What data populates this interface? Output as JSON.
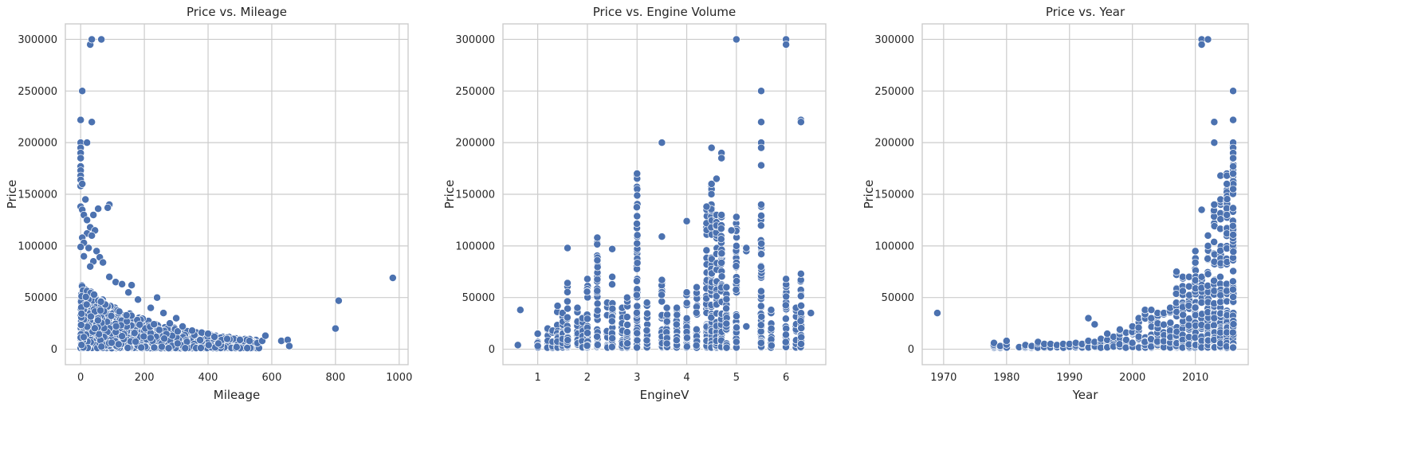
{
  "colors": {
    "points": "#4c72b0",
    "grid": "#cccccc",
    "frame": "#cccccc",
    "text": "#262626"
  },
  "chart_data": [
    {
      "type": "scatter",
      "title": "Price vs. Mileage",
      "xlabel": "Mileage",
      "ylabel": "Price",
      "xlim": [
        -48,
        1028
      ],
      "ylim": [
        -15000,
        315000
      ],
      "xticks": [
        0,
        200,
        400,
        600,
        800,
        1000
      ],
      "yticks": [
        0,
        50000,
        100000,
        150000,
        200000,
        250000,
        300000
      ],
      "grid": true,
      "cluster": {
        "x": [
          0,
          560
        ],
        "y": [
          1000,
          60000
        ],
        "count": 1400
      },
      "points": [
        [
          30,
          295000
        ],
        [
          35,
          300000
        ],
        [
          65,
          300000
        ],
        [
          5,
          250000
        ],
        [
          0,
          222000
        ],
        [
          35,
          220000
        ],
        [
          0,
          200000
        ],
        [
          20,
          200000
        ],
        [
          0,
          195000
        ],
        [
          0,
          190000
        ],
        [
          0,
          185000
        ],
        [
          0,
          177000
        ],
        [
          0,
          173000
        ],
        [
          0,
          168000
        ],
        [
          0,
          164000
        ],
        [
          0,
          158000
        ],
        [
          5,
          160000
        ],
        [
          15,
          145000
        ],
        [
          90,
          140000
        ],
        [
          85,
          137000
        ],
        [
          55,
          136000
        ],
        [
          40,
          130000
        ],
        [
          0,
          138000
        ],
        [
          5,
          135000
        ],
        [
          10,
          130000
        ],
        [
          20,
          125000
        ],
        [
          30,
          118000
        ],
        [
          45,
          115000
        ],
        [
          20,
          112000
        ],
        [
          35,
          110000
        ],
        [
          5,
          108000
        ],
        [
          10,
          103000
        ],
        [
          0,
          99000
        ],
        [
          25,
          98000
        ],
        [
          50,
          95000
        ],
        [
          10,
          90000
        ],
        [
          60,
          89000
        ],
        [
          40,
          85000
        ],
        [
          70,
          84000
        ],
        [
          30,
          80000
        ],
        [
          90,
          70000
        ],
        [
          110,
          65000
        ],
        [
          130,
          63000
        ],
        [
          160,
          62000
        ],
        [
          150,
          55000
        ],
        [
          180,
          48000
        ],
        [
          240,
          50000
        ],
        [
          220,
          40000
        ],
        [
          260,
          35000
        ],
        [
          300,
          30000
        ],
        [
          280,
          25000
        ],
        [
          320,
          22000
        ],
        [
          350,
          18000
        ],
        [
          380,
          16000
        ],
        [
          400,
          15000
        ],
        [
          420,
          12000
        ],
        [
          460,
          10000
        ],
        [
          500,
          9000
        ],
        [
          530,
          8000
        ],
        [
          555,
          6000
        ],
        [
          570,
          8000
        ],
        [
          580,
          13000
        ],
        [
          630,
          8000
        ],
        [
          650,
          9000
        ],
        [
          655,
          3000
        ],
        [
          800,
          20000
        ],
        [
          810,
          47000
        ],
        [
          980,
          69000
        ]
      ]
    },
    {
      "type": "scatter",
      "title": "Price vs. Engine Volume",
      "xlabel": "EngineV",
      "ylabel": "Price",
      "xlim": [
        0.3,
        6.8
      ],
      "ylim": [
        -15000,
        315000
      ],
      "xticks": [
        1,
        2,
        3,
        4,
        5,
        6
      ],
      "yticks": [
        0,
        50000,
        100000,
        150000,
        200000,
        250000,
        300000
      ],
      "grid": true,
      "columns": [
        [
          1.0,
          15000
        ],
        [
          1.2,
          20000
        ],
        [
          1.3,
          18000
        ],
        [
          1.4,
          42000
        ],
        [
          1.5,
          35000
        ],
        [
          1.6,
          64000
        ],
        [
          1.8,
          40000
        ],
        [
          1.9,
          30000
        ],
        [
          2.0,
          68000
        ],
        [
          2.2,
          108000
        ],
        [
          2.4,
          45000
        ],
        [
          2.5,
          70000
        ],
        [
          2.7,
          40000
        ],
        [
          2.8,
          50000
        ],
        [
          3.0,
          170000
        ],
        [
          3.2,
          45000
        ],
        [
          3.5,
          67000
        ],
        [
          3.6,
          40000
        ],
        [
          3.8,
          40000
        ],
        [
          4.0,
          55000
        ],
        [
          4.2,
          60000
        ],
        [
          4.4,
          135000
        ],
        [
          4.5,
          160000
        ],
        [
          4.6,
          130000
        ],
        [
          4.7,
          130000
        ],
        [
          4.8,
          60000
        ],
        [
          5.0,
          128000
        ],
        [
          5.5,
          138000
        ],
        [
          5.7,
          35000
        ],
        [
          6.0,
          68000
        ],
        [
          6.2,
          40000
        ],
        [
          6.3,
          73000
        ]
      ],
      "points": [
        [
          0.6,
          4000
        ],
        [
          0.65,
          38000
        ],
        [
          1.6,
          98000
        ],
        [
          2.5,
          97000
        ],
        [
          3.5,
          109000
        ],
        [
          3.5,
          200000
        ],
        [
          4.0,
          124000
        ],
        [
          4.5,
          195000
        ],
        [
          4.6,
          165000
        ],
        [
          4.7,
          190000
        ],
        [
          4.7,
          185000
        ],
        [
          4.9,
          115000
        ],
        [
          5.0,
          300000
        ],
        [
          5.0,
          100000
        ],
        [
          5.2,
          22000
        ],
        [
          5.2,
          95000
        ],
        [
          5.5,
          250000
        ],
        [
          5.5,
          220000
        ],
        [
          5.5,
          200000
        ],
        [
          5.5,
          195000
        ],
        [
          5.5,
          178000
        ],
        [
          6.0,
          300000
        ],
        [
          6.0,
          295000
        ],
        [
          6.3,
          222000
        ],
        [
          6.3,
          220000
        ],
        [
          6.5,
          35000
        ],
        [
          5.7,
          38000
        ],
        [
          5.2,
          98000
        ],
        [
          4.4,
          138000
        ],
        [
          5.5,
          140000
        ]
      ]
    },
    {
      "type": "scatter",
      "title": "Price vs. Year",
      "xlabel": "Year",
      "ylabel": "Price",
      "xlim": [
        1966.6,
        2018.4
      ],
      "ylim": [
        -15000,
        315000
      ],
      "xticks": [
        1970,
        1980,
        1990,
        2000,
        2010
      ],
      "yticks": [
        0,
        50000,
        100000,
        150000,
        200000,
        250000,
        300000
      ],
      "grid": true,
      "columns": [
        [
          1978,
          6000
        ],
        [
          1979,
          3000
        ],
        [
          1980,
          8000
        ],
        [
          1982,
          2000
        ],
        [
          1983,
          4000
        ],
        [
          1984,
          3000
        ],
        [
          1985,
          7000
        ],
        [
          1986,
          5000
        ],
        [
          1987,
          5000
        ],
        [
          1988,
          4000
        ],
        [
          1989,
          5000
        ],
        [
          1990,
          5000
        ],
        [
          1991,
          6000
        ],
        [
          1992,
          5000
        ],
        [
          1993,
          8000
        ],
        [
          1994,
          7000
        ],
        [
          1995,
          10000
        ],
        [
          1996,
          9000
        ],
        [
          1997,
          12000
        ],
        [
          1998,
          18000
        ],
        [
          1999,
          16000
        ],
        [
          2000,
          22000
        ],
        [
          2001,
          30000
        ],
        [
          2002,
          38000
        ],
        [
          2003,
          30000
        ],
        [
          2004,
          35000
        ],
        [
          2005,
          35000
        ],
        [
          2006,
          40000
        ],
        [
          2007,
          72000
        ],
        [
          2008,
          70000
        ],
        [
          2009,
          70000
        ],
        [
          2010,
          95000
        ],
        [
          2011,
          70000
        ],
        [
          2012,
          100000
        ],
        [
          2013,
          140000
        ],
        [
          2014,
          145000
        ],
        [
          2015,
          170000
        ],
        [
          2016,
          200000
        ]
      ],
      "points": [
        [
          1969,
          35000
        ],
        [
          1993,
          30000
        ],
        [
          1994,
          24000
        ],
        [
          1996,
          15000
        ],
        [
          1998,
          19000
        ],
        [
          2003,
          38000
        ],
        [
          2007,
          75000
        ],
        [
          2010,
          95000
        ],
        [
          2011,
          135000
        ],
        [
          2011,
          300000
        ],
        [
          2011,
          295000
        ],
        [
          2012,
          300000
        ],
        [
          2013,
          220000
        ],
        [
          2013,
          200000
        ],
        [
          2014,
          168000
        ],
        [
          2015,
          168000
        ],
        [
          2015,
          160000
        ],
        [
          2016,
          250000
        ],
        [
          2016,
          222000
        ],
        [
          2016,
          195000
        ],
        [
          2016,
          190000
        ],
        [
          2016,
          185000
        ],
        [
          2016,
          177000
        ],
        [
          2016,
          170000
        ],
        [
          2013,
          140000
        ],
        [
          2015,
          130000
        ],
        [
          2016,
          155000
        ],
        [
          2012,
          110000
        ]
      ]
    }
  ]
}
